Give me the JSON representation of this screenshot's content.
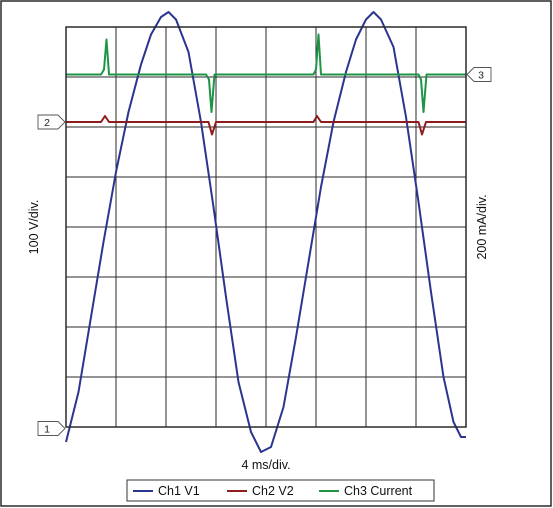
{
  "chart_data": {
    "type": "line",
    "xlabel": "4 ms/div.",
    "ylabel_left": "100 V/div.",
    "ylabel_right": "200 mA/div.",
    "grid": true,
    "divisions": {
      "x": 8,
      "y": 8
    },
    "x_unit": "div",
    "y_unit": "div",
    "legend_position": "bottom",
    "channel_markers": [
      {
        "label": "1",
        "side": "left",
        "y": -0.03
      },
      {
        "label": "2",
        "side": "left",
        "y": 6.1
      },
      {
        "label": "3",
        "side": "right",
        "y": 7.05
      }
    ],
    "series": [
      {
        "name": "Ch1 V1",
        "color": "#2a3590",
        "points": [
          [
            0.0,
            -0.3
          ],
          [
            0.25,
            0.7
          ],
          [
            0.5,
            2.2
          ],
          [
            0.75,
            3.7
          ],
          [
            1.0,
            5.1
          ],
          [
            1.25,
            6.3
          ],
          [
            1.5,
            7.25
          ],
          [
            1.7,
            7.85
          ],
          [
            1.9,
            8.2
          ],
          [
            2.05,
            8.3
          ],
          [
            2.2,
            8.15
          ],
          [
            2.45,
            7.5
          ],
          [
            2.7,
            6.1
          ],
          [
            2.95,
            4.4
          ],
          [
            3.2,
            2.6
          ],
          [
            3.45,
            0.9
          ],
          [
            3.7,
            -0.1
          ],
          [
            3.9,
            -0.5
          ],
          [
            4.1,
            -0.4
          ],
          [
            4.35,
            0.4
          ],
          [
            4.6,
            1.8
          ],
          [
            4.85,
            3.3
          ],
          [
            5.1,
            4.8
          ],
          [
            5.35,
            6.1
          ],
          [
            5.6,
            7.1
          ],
          [
            5.8,
            7.75
          ],
          [
            6.0,
            8.15
          ],
          [
            6.15,
            8.3
          ],
          [
            6.3,
            8.15
          ],
          [
            6.55,
            7.6
          ],
          [
            6.8,
            6.2
          ],
          [
            7.05,
            4.5
          ],
          [
            7.3,
            2.7
          ],
          [
            7.55,
            1.0
          ],
          [
            7.75,
            0.1
          ],
          [
            7.9,
            -0.2
          ],
          [
            8.0,
            -0.2
          ]
        ]
      },
      {
        "name": "Ch2 V2",
        "color": "#8f1d1d",
        "points": [
          [
            0.0,
            6.1
          ],
          [
            0.7,
            6.1
          ],
          [
            0.78,
            6.22
          ],
          [
            0.86,
            6.1
          ],
          [
            2.85,
            6.1
          ],
          [
            2.92,
            5.85
          ],
          [
            3.0,
            6.1
          ],
          [
            4.95,
            6.1
          ],
          [
            5.02,
            6.22
          ],
          [
            5.1,
            6.1
          ],
          [
            7.05,
            6.1
          ],
          [
            7.12,
            5.85
          ],
          [
            7.2,
            6.1
          ],
          [
            8.0,
            6.1
          ]
        ]
      },
      {
        "name": "Ch3 Current",
        "color": "#1e9444",
        "points": [
          [
            0.0,
            7.05
          ],
          [
            0.7,
            7.05
          ],
          [
            0.76,
            7.15
          ],
          [
            0.81,
            7.75
          ],
          [
            0.86,
            7.05
          ],
          [
            2.8,
            7.05
          ],
          [
            2.86,
            6.95
          ],
          [
            2.91,
            6.3
          ],
          [
            2.97,
            7.05
          ],
          [
            4.95,
            7.05
          ],
          [
            5.0,
            7.15
          ],
          [
            5.05,
            7.85
          ],
          [
            5.1,
            7.05
          ],
          [
            7.05,
            7.05
          ],
          [
            7.1,
            6.95
          ],
          [
            7.15,
            6.3
          ],
          [
            7.21,
            7.05
          ],
          [
            8.0,
            7.05
          ]
        ]
      }
    ]
  }
}
